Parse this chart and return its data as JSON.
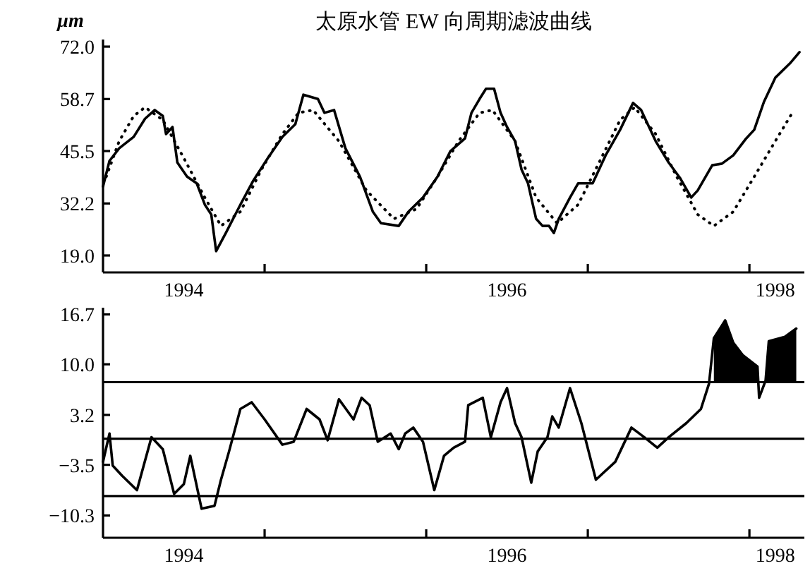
{
  "chart_data": [
    {
      "type": "line",
      "title": "太原水管 EW 向周期滤波曲线",
      "ylabel": "μm",
      "xlim": [
        1994,
        1998.34
      ],
      "xticks": [
        {
          "value": 1994.5,
          "label": "1994"
        },
        {
          "value": 1995,
          "label": null
        },
        {
          "value": 1996,
          "label": null
        },
        {
          "value": 1996.5,
          "label": "1996"
        },
        {
          "value": 1997,
          "label": null
        },
        {
          "value": 1998,
          "label": null
        },
        {
          "value": 1998.16,
          "label": "1998"
        }
      ],
      "ylim": [
        14.7,
        73.8
      ],
      "yticks": [
        {
          "value": 19,
          "label": "19.0"
        },
        {
          "value": 32.2,
          "label": "32.2"
        },
        {
          "value": 45.5,
          "label": "45.5"
        },
        {
          "value": 58.7,
          "label": "58.7"
        },
        {
          "value": 72,
          "label": "72.0"
        }
      ],
      "series": [
        {
          "color": "#000000",
          "line_style": "solid",
          "x": [
            1994.0,
            1994.04,
            1994.1,
            1994.19,
            1994.26,
            1994.32,
            1994.37,
            1994.39,
            1994.43,
            1994.46,
            1994.52,
            1994.58,
            1994.63,
            1994.67,
            1994.7,
            1994.76,
            1994.85,
            1994.93,
            1995.02,
            1995.11,
            1995.19,
            1995.24,
            1995.33,
            1995.37,
            1995.43,
            1995.5,
            1995.59,
            1995.67,
            1995.72,
            1995.83,
            1995.89,
            1995.98,
            1996.07,
            1996.15,
            1996.24,
            1996.28,
            1996.33,
            1996.37,
            1996.42,
            1996.46,
            1996.5,
            1996.55,
            1996.59,
            1996.63,
            1996.68,
            1996.72,
            1996.76,
            1996.79,
            1996.82,
            1996.89,
            1996.94,
            1997.03,
            1997.11,
            1997.2,
            1997.28,
            1997.33,
            1997.42,
            1997.5,
            1997.57,
            1997.64,
            1997.68,
            1997.77,
            1997.83,
            1997.9,
            1997.98,
            1998.03,
            1998.09,
            1998.16,
            1998.25,
            1998.31
          ],
          "values": [
            36.5,
            43.0,
            46.2,
            49.1,
            53.7,
            55.9,
            54.4,
            49.8,
            51.6,
            42.6,
            39.0,
            37.3,
            31.9,
            29.4,
            20.1,
            24.7,
            31.9,
            38.0,
            43.7,
            49.1,
            52.3,
            59.8,
            58.7,
            55.2,
            55.9,
            46.2,
            39.0,
            30.1,
            27.2,
            26.5,
            30.1,
            33.7,
            39.0,
            45.5,
            48.7,
            55.2,
            58.7,
            61.3,
            61.3,
            55.2,
            51.6,
            48.0,
            40.8,
            37.3,
            28.3,
            26.5,
            26.5,
            24.7,
            28.3,
            33.7,
            37.3,
            37.3,
            44.4,
            50.9,
            57.7,
            55.9,
            48.0,
            42.6,
            38.7,
            33.7,
            35.5,
            41.9,
            42.3,
            44.4,
            48.7,
            50.9,
            58.0,
            64.1,
            67.7,
            70.6
          ]
        },
        {
          "color": "#000000",
          "line_style": "dotted",
          "x": [
            1994.02,
            1994.1,
            1994.19,
            1994.26,
            1994.37,
            1994.5,
            1994.63,
            1994.73,
            1994.85,
            1994.98,
            1995.11,
            1995.21,
            1995.3,
            1995.46,
            1995.63,
            1995.8,
            1995.94,
            1996.07,
            1996.2,
            1996.33,
            1996.41,
            1996.55,
            1996.68,
            1996.81,
            1996.94,
            1997.07,
            1997.2,
            1997.29,
            1997.42,
            1997.55,
            1997.68,
            1997.78,
            1997.9,
            1998.03,
            1998.16,
            1998.27
          ],
          "values": [
            39.0,
            48.0,
            54.4,
            56.6,
            53.4,
            43.7,
            33.7,
            26.5,
            30.1,
            40.8,
            49.8,
            55.2,
            55.9,
            48.0,
            35.5,
            28.3,
            30.8,
            39.0,
            48.0,
            55.2,
            55.9,
            48.0,
            33.7,
            27.2,
            31.9,
            42.6,
            53.4,
            56.6,
            49.8,
            39.0,
            29.4,
            26.5,
            30.1,
            39.0,
            48.0,
            55.5
          ]
        }
      ]
    },
    {
      "type": "line",
      "xlim": [
        1994,
        1998.34
      ],
      "xticks": [
        {
          "value": 1994.5,
          "label": "1994"
        },
        {
          "value": 1995,
          "label": null
        },
        {
          "value": 1996,
          "label": null
        },
        {
          "value": 1996.5,
          "label": "1996"
        },
        {
          "value": 1997,
          "label": null
        },
        {
          "value": 1998,
          "label": null
        },
        {
          "value": 1998.16,
          "label": "1998"
        }
      ],
      "ylim": [
        -13.3,
        17.6
      ],
      "yticks": [
        {
          "value": -10.3,
          "label": "−10.3"
        },
        {
          "value": -3.5,
          "label": "−3.5"
        },
        {
          "value": 3.2,
          "label": "3.2"
        },
        {
          "value": 10,
          "label": "10.0"
        },
        {
          "value": 16.7,
          "label": "16.7"
        }
      ],
      "ref_lines": [
        {
          "axis": "y",
          "value": 7.6,
          "color": "#000000"
        },
        {
          "axis": "y",
          "value": 0,
          "color": "#000000"
        },
        {
          "axis": "y",
          "value": -7.7,
          "color": "#000000"
        }
      ],
      "series": [
        {
          "color": "#000000",
          "line_style": "solid",
          "x": [
            1994.0,
            1994.04,
            1994.06,
            1994.12,
            1994.21,
            1994.3,
            1994.37,
            1994.44,
            1994.5,
            1994.54,
            1994.61,
            1994.69,
            1994.73,
            1994.78,
            1994.85,
            1994.92,
            1995.0,
            1995.11,
            1995.18,
            1995.26,
            1995.34,
            1995.39,
            1995.46,
            1995.55,
            1995.6,
            1995.65,
            1995.7,
            1995.78,
            1995.83,
            1995.87,
            1995.92,
            1995.98,
            1996.05,
            1996.11,
            1996.17,
            1996.24,
            1996.26,
            1996.35,
            1996.4,
            1996.46,
            1996.5,
            1996.55,
            1996.59,
            1996.65,
            1996.69,
            1996.75,
            1996.78,
            1996.82,
            1996.89,
            1996.96,
            1997.05,
            1997.17,
            1997.27,
            1997.35,
            1997.43,
            1997.5,
            1997.61,
            1997.7,
            1997.75,
            1997.78,
            1997.85,
            1997.9,
            1997.96,
            1998.05,
            1998.06,
            1998.1,
            1998.12,
            1998.22,
            1998.29
          ],
          "values": [
            -3.1,
            0.7,
            -3.6,
            -5.0,
            -6.9,
            0.2,
            -1.4,
            -7.4,
            -6.1,
            -2.3,
            -9.4,
            -9.0,
            -5.5,
            -1.7,
            4.0,
            4.9,
            2.6,
            -0.8,
            -0.4,
            4.0,
            2.6,
            -0.2,
            5.3,
            2.6,
            5.5,
            4.5,
            -0.4,
            0.7,
            -1.4,
            0.7,
            1.5,
            -0.4,
            -6.9,
            -2.3,
            -1.2,
            -0.4,
            4.5,
            5.5,
            0.2,
            4.9,
            6.8,
            2.1,
            0.2,
            -5.9,
            -1.7,
            0.2,
            3.0,
            1.5,
            6.8,
            2.1,
            -5.5,
            -3.1,
            1.5,
            0.2,
            -1.2,
            0.2,
            2.1,
            4.0,
            7.4,
            13.5,
            15.9,
            12.9,
            11.2,
            9.7,
            5.5,
            7.8,
            13.1,
            13.7,
            14.8
          ],
          "lower": [
            null,
            null,
            null,
            null,
            null,
            null,
            null,
            null,
            null,
            null,
            null,
            null,
            null,
            null,
            null,
            null,
            null,
            null,
            null,
            null,
            null,
            null,
            null,
            null,
            null,
            null,
            null,
            null,
            null,
            null,
            null,
            null,
            null,
            null,
            null,
            null,
            null,
            null,
            null,
            null,
            null,
            null,
            null,
            null,
            null,
            null,
            null,
            null,
            null,
            null,
            null,
            null,
            null,
            null,
            null,
            null,
            null,
            null,
            null,
            7.6,
            7.6,
            7.6,
            7.6,
            7.6,
            null,
            7.6,
            7.6,
            7.6,
            7.6
          ],
          "upper": [
            null,
            null,
            null,
            null,
            null,
            null,
            null,
            null,
            null,
            null,
            null,
            null,
            null,
            null,
            null,
            null,
            null,
            null,
            null,
            null,
            null,
            null,
            null,
            null,
            null,
            null,
            null,
            null,
            null,
            null,
            null,
            null,
            null,
            null,
            null,
            null,
            null,
            null,
            null,
            null,
            null,
            null,
            null,
            null,
            null,
            null,
            null,
            null,
            null,
            null,
            null,
            null,
            null,
            null,
            null,
            null,
            null,
            null,
            null,
            13.5,
            15.9,
            12.9,
            11.2,
            9.7,
            null,
            7.8,
            13.1,
            13.7,
            14.8
          ]
        }
      ]
    }
  ]
}
